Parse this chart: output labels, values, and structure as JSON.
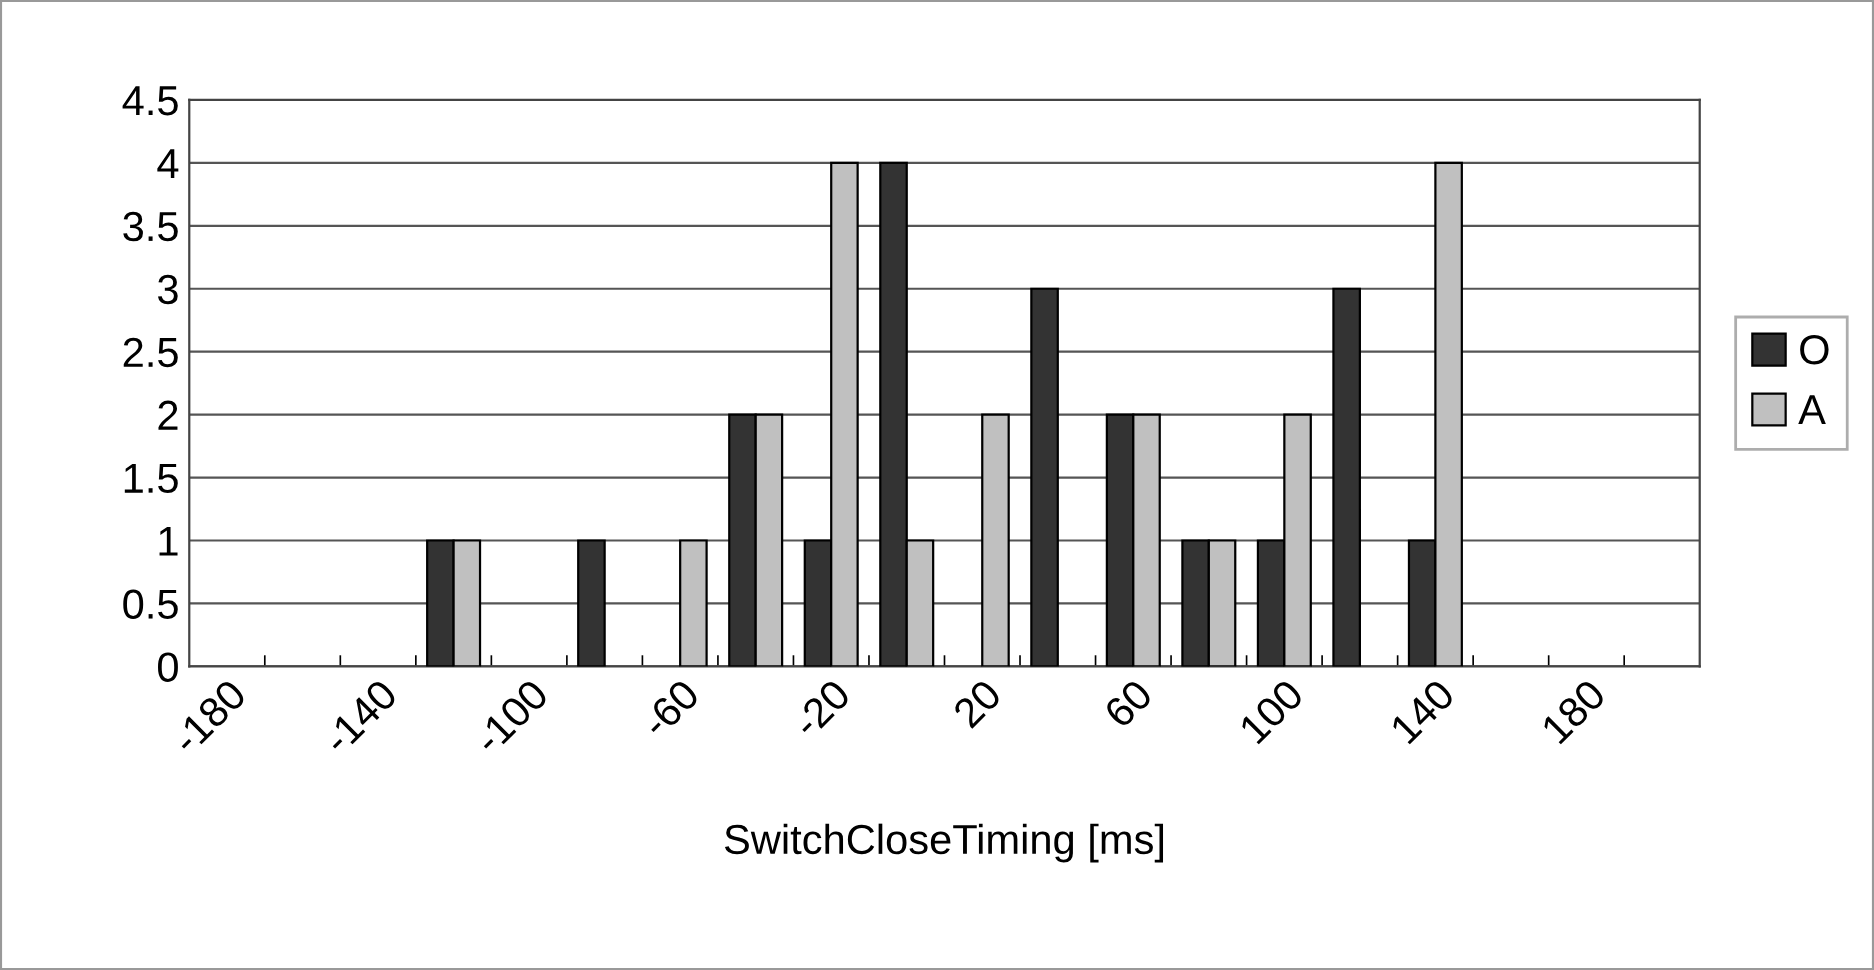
{
  "chart_data": {
    "type": "bar",
    "xlabel": "SwitchCloseTiming [ms]",
    "categories": [
      "-180",
      null,
      "-140",
      null,
      "-100",
      null,
      "-60",
      null,
      "-20",
      null,
      "20",
      null,
      "60",
      null,
      "100",
      null,
      "140",
      null,
      "180",
      null
    ],
    "series": [
      {
        "name": "O",
        "color": "#333333",
        "values": [
          0,
          0,
          0,
          1,
          0,
          1,
          0,
          2,
          1,
          4,
          0,
          3,
          2,
          1,
          1,
          3,
          1,
          0,
          0,
          0
        ]
      },
      {
        "name": "A",
        "color": "#c0c0c0",
        "values": [
          0,
          0,
          0,
          1,
          0,
          0,
          1,
          2,
          4,
          1,
          2,
          0,
          2,
          1,
          2,
          0,
          4,
          0,
          0,
          0
        ]
      }
    ],
    "ylim": [
      0,
      4.5
    ],
    "yticks": [
      0,
      0.5,
      1,
      1.5,
      2,
      2.5,
      3,
      3.5,
      4,
      4.5
    ],
    "grid": "y",
    "legend": "right"
  }
}
